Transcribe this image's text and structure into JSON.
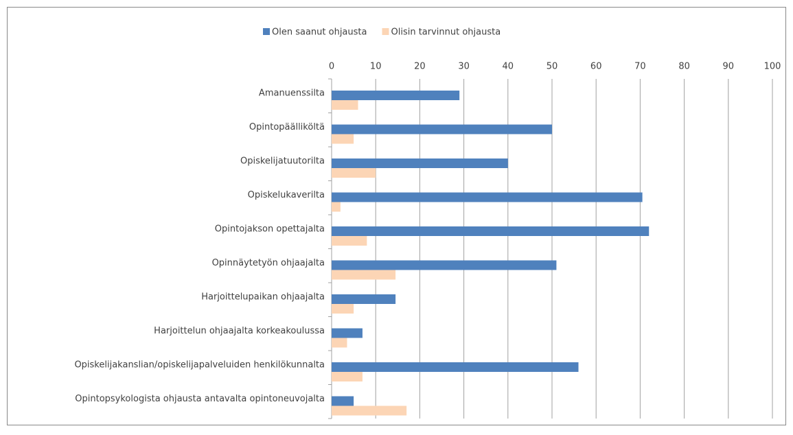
{
  "chart_data": {
    "type": "hbar",
    "categories": [
      "Amanuenssilta",
      "Opintopäälliköltä",
      "Opiskelijatuutorilta",
      "Opiskelukaverilta",
      "Opintojakson opettajalta",
      "Opinnäytetyön ohjaajalta",
      "Harjoittelupaikan ohjaajalta",
      "Harjoittelun ohjaajalta korkeakoulussa",
      "Opiskelijakanslian/opiskelijapalveluiden henkilökunnalta",
      "Opintopsykologista ohjausta antavalta opintoneuvojalta"
    ],
    "series": [
      {
        "name": "Olen saanut ohjausta",
        "color": "#4f81bd",
        "values": [
          29,
          50,
          40,
          70.5,
          72,
          51,
          14.5,
          7,
          56,
          5
        ]
      },
      {
        "name": "Olisin tarvinnut ohjausta",
        "color": "#fcd5b5",
        "values": [
          6,
          5,
          10,
          2,
          8,
          14.5,
          5,
          3.5,
          7,
          17
        ]
      }
    ],
    "xlim": [
      0,
      100
    ],
    "xticks": [
      0,
      10,
      20,
      30,
      40,
      50,
      60,
      70,
      80,
      90,
      100
    ],
    "grid": true,
    "legend": "top"
  }
}
